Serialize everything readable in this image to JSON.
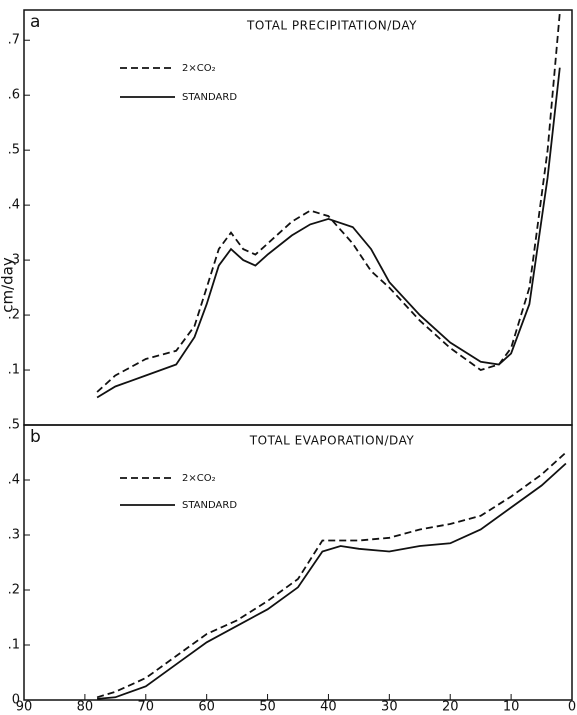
{
  "chart_data": [
    {
      "type": "line",
      "panel_label": "a",
      "title": "TOTAL PRECIPITATION/DAY",
      "ylabel": "cm/day",
      "x": [
        78,
        75,
        70,
        65,
        62,
        60,
        58,
        56,
        54,
        52,
        50,
        46,
        43,
        40,
        36,
        33,
        30,
        25,
        20,
        15,
        12,
        10,
        7,
        4,
        2
      ],
      "series": [
        {
          "name": "2×CO₂",
          "style": "dashed",
          "color": "#111111",
          "values": [
            0.06,
            0.09,
            0.12,
            0.135,
            0.18,
            0.25,
            0.32,
            0.35,
            0.32,
            0.31,
            0.33,
            0.37,
            0.39,
            0.38,
            0.33,
            0.28,
            0.25,
            0.19,
            0.14,
            0.1,
            0.11,
            0.14,
            0.25,
            0.5,
            0.75
          ]
        },
        {
          "name": "STANDARD",
          "style": "solid",
          "color": "#111111",
          "values": [
            0.05,
            0.07,
            0.09,
            0.11,
            0.16,
            0.22,
            0.29,
            0.32,
            0.3,
            0.29,
            0.31,
            0.345,
            0.365,
            0.375,
            0.36,
            0.32,
            0.26,
            0.2,
            0.15,
            0.115,
            0.11,
            0.13,
            0.22,
            0.45,
            0.65
          ]
        }
      ],
      "xlim": [
        90,
        0
      ],
      "ylim": [
        0,
        0.755
      ],
      "yticks": [
        {
          "value": 0.1,
          "label": ".1"
        },
        {
          "value": 0.2,
          "label": ".2"
        },
        {
          "value": 0.3,
          "label": ".3"
        },
        {
          "value": 0.4,
          "label": ".4"
        },
        {
          "value": 0.5,
          "label": ".5"
        },
        {
          "value": 0.6,
          "label": ".6"
        },
        {
          "value": 0.7,
          "label": ".7"
        }
      ]
    },
    {
      "type": "line",
      "panel_label": "b",
      "title": "TOTAL EVAPORATION/DAY",
      "x": [
        78,
        75,
        70,
        65,
        60,
        55,
        50,
        45,
        41,
        38,
        35,
        30,
        25,
        20,
        15,
        10,
        5,
        1
      ],
      "series": [
        {
          "name": "2×CO₂",
          "style": "dashed",
          "color": "#111111",
          "values": [
            0.005,
            0.015,
            0.04,
            0.08,
            0.12,
            0.145,
            0.18,
            0.22,
            0.29,
            0.29,
            0.29,
            0.295,
            0.31,
            0.32,
            0.335,
            0.37,
            0.41,
            0.45
          ]
        },
        {
          "name": "STANDARD",
          "style": "solid",
          "color": "#111111",
          "values": [
            0.002,
            0.005,
            0.025,
            0.065,
            0.105,
            0.135,
            0.165,
            0.205,
            0.27,
            0.28,
            0.275,
            0.27,
            0.28,
            0.285,
            0.31,
            0.35,
            0.39,
            0.43
          ]
        }
      ],
      "xlim": [
        90,
        0
      ],
      "ylim": [
        0,
        0.5
      ],
      "xticks": [
        90,
        80,
        70,
        60,
        50,
        40,
        30,
        20,
        10,
        0
      ],
      "yticks": [
        0,
        {
          "value": 0.1,
          "label": ".1"
        },
        {
          "value": 0.2,
          "label": ".2"
        },
        {
          "value": 0.3,
          "label": ".3"
        },
        {
          "value": 0.4,
          "label": ".4"
        },
        {
          "value": 0.5,
          "label": ".5"
        }
      ]
    }
  ]
}
